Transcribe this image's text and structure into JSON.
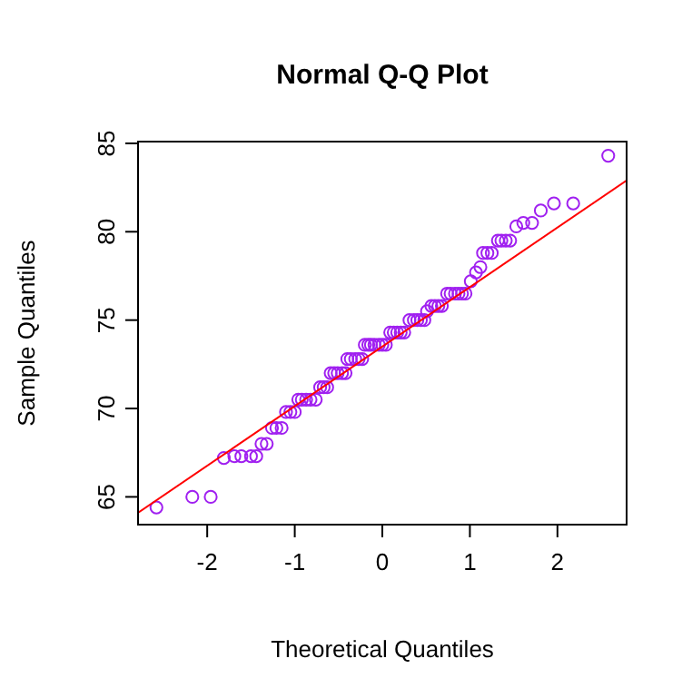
{
  "chart_data": {
    "type": "scatter",
    "title": "Normal Q-Q Plot",
    "xlabel": "Theoretical Quantiles",
    "ylabel": "Sample Quantiles",
    "grid": false,
    "xlim": [
      -2.79,
      2.79
    ],
    "ylim": [
      63.43,
      85.1
    ],
    "xticks": [
      -2,
      -1,
      0,
      1,
      2
    ],
    "yticks": [
      65,
      70,
      75,
      80,
      85
    ],
    "series": [
      {
        "marker": "circle",
        "color": "#a020f0",
        "x": [
          -2.58,
          -2.17,
          -1.96,
          -1.81,
          -1.69,
          -1.61,
          -1.5,
          -1.44,
          -1.38,
          -1.32,
          -1.26,
          -1.21,
          -1.15,
          -1.1,
          -1.05,
          -1.0,
          -0.96,
          -0.92,
          -0.87,
          -0.82,
          -0.76,
          -0.71,
          -0.67,
          -0.63,
          -0.59,
          -0.55,
          -0.51,
          -0.46,
          -0.42,
          -0.4,
          -0.36,
          -0.31,
          -0.27,
          -0.23,
          -0.2,
          -0.16,
          -0.13,
          -0.09,
          -0.04,
          0,
          0.04,
          0.09,
          0.13,
          0.17,
          0.21,
          0.25,
          0.31,
          0.36,
          0.4,
          0.44,
          0.48,
          0.51,
          0.56,
          0.6,
          0.64,
          0.68,
          0.74,
          0.78,
          0.83,
          0.87,
          0.91,
          0.95,
          1.01,
          1.07,
          1.12,
          1.15,
          1.2,
          1.25,
          1.32,
          1.36,
          1.41,
          1.46,
          1.53,
          1.61,
          1.71,
          1.81,
          1.96,
          2.18,
          2.58
        ],
        "values": [
          64.4,
          65,
          65,
          67.2,
          67.3,
          67.3,
          67.3,
          67.3,
          68,
          68,
          68.9,
          68.9,
          68.9,
          69.8,
          69.8,
          69.8,
          70.5,
          70.5,
          70.5,
          70.5,
          70.5,
          71.2,
          71.2,
          71.2,
          72,
          72,
          72,
          72,
          72,
          72.8,
          72.8,
          72.8,
          72.8,
          72.8,
          73.6,
          73.6,
          73.6,
          73.6,
          73.6,
          73.6,
          73.6,
          74.3,
          74.3,
          74.3,
          74.3,
          74.3,
          75,
          75,
          75,
          75,
          75,
          75.5,
          75.8,
          75.8,
          75.8,
          75.8,
          76.5,
          76.5,
          76.5,
          76.5,
          76.5,
          76.5,
          77.2,
          77.7,
          78,
          78.8,
          78.8,
          78.8,
          79.5,
          79.5,
          79.5,
          79.5,
          80.3,
          80.5,
          80.5,
          81.2,
          81.6,
          81.6,
          84.3
        ]
      },
      {
        "type": "line",
        "color": "#ff0000",
        "x": [
          -2.79,
          2.79
        ],
        "values": [
          64.1,
          82.9
        ]
      }
    ]
  }
}
